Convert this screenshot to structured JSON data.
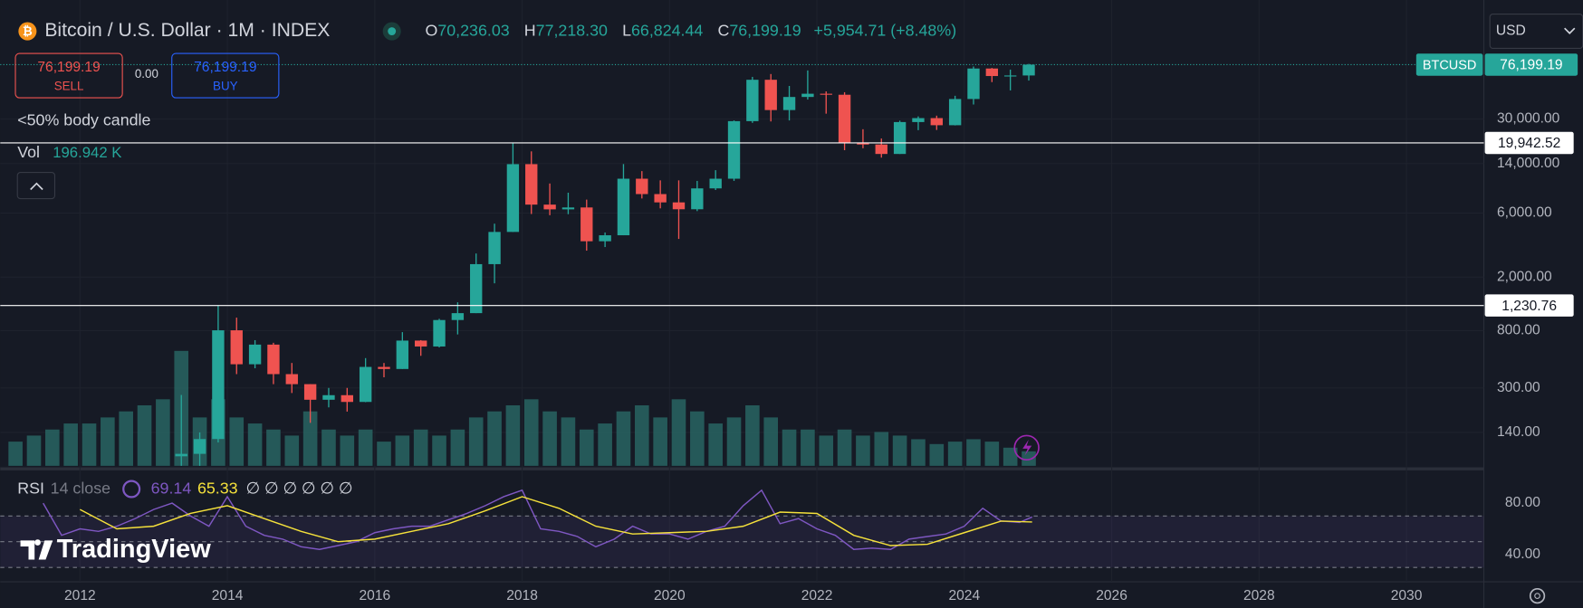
{
  "header": {
    "title": "Bitcoin / U.S. Dollar · 1M · INDEX",
    "open_label": "O",
    "open": "70,236.03",
    "high_label": "H",
    "high": "77,218.30",
    "low_label": "L",
    "low": "66,824.44",
    "close_label": "C",
    "close": "76,199.19",
    "change": "+5,954.71 (+8.48%)",
    "sell_price": "76,199.19",
    "sell": "SELL",
    "spread": "0.00",
    "buy_price": "76,199.19",
    "buy": "BUY",
    "indicator": "<50% body candle",
    "vol_label": "Vol",
    "vol_value": "196.942 K",
    "currency": "USD",
    "symbol": "BTCUSD",
    "last_price": "76,199.19",
    "logo": "TradingView"
  },
  "chart_data": [
    {
      "type": "candlestick",
      "log_scale": true,
      "grid": true,
      "up_color": "#26a69a",
      "down_color": "#ef5350",
      "xlim": [
        2010.918,
        2031.05
      ],
      "xticks": [
        2012,
        2014,
        2016,
        2018,
        2020,
        2022,
        2024,
        2026,
        2028,
        2030
      ],
      "ylim": [
        79,
        194000
      ],
      "yticks": [
        {
          "value": 30000,
          "label": "30,000.00"
        },
        {
          "value": 14000,
          "label": "14,000.00"
        },
        {
          "value": 6000,
          "label": "6,000.00"
        },
        {
          "value": 2000,
          "label": "2,000.00"
        },
        {
          "value": 800,
          "label": "800.00"
        },
        {
          "value": 300,
          "label": "300.00"
        },
        {
          "value": 140,
          "label": "140.00"
        }
      ],
      "levels": [
        {
          "value": 19942.52,
          "label": "19,942.52"
        },
        {
          "value": 1230.76,
          "label": "1,230.76"
        }
      ],
      "last": 76199.19,
      "x": [
        2013.375,
        2013.625,
        2013.875,
        2014.125,
        2014.375,
        2014.625,
        2014.875,
        2015.125,
        2015.375,
        2015.625,
        2015.875,
        2016.125,
        2016.375,
        2016.625,
        2016.875,
        2017.125,
        2017.375,
        2017.625,
        2017.875,
        2018.125,
        2018.375,
        2018.625,
        2018.875,
        2019.125,
        2019.375,
        2019.625,
        2019.875,
        2020.125,
        2020.375,
        2020.625,
        2020.875,
        2021.125,
        2021.375,
        2021.625,
        2021.875,
        2022.125,
        2022.375,
        2022.625,
        2022.875,
        2023.125,
        2023.375,
        2023.625,
        2023.875,
        2024.125,
        2024.375,
        2024.625,
        2024.875
      ],
      "open": [
        93,
        97,
        125,
        805,
        450,
        630,
        380,
        320,
        245,
        265,
        236,
        430,
        415,
        675,
        610,
        960,
        1080,
        2500,
        4340,
        13860,
        6930,
        6390,
        6600,
        3700,
        4100,
        10800,
        8300,
        7200,
        6400,
        9150,
        10800,
        28950,
        58800,
        35000,
        43800,
        46300,
        45500,
        19900,
        19400,
        16500,
        28500,
        30500,
        27000,
        42300,
        71300,
        62700,
        63300
      ],
      "high": [
        266,
        140,
        1230,
        1000,
        680,
        650,
        460,
        320,
        300,
        300,
        500,
        460,
        780,
        680,
        980,
        1300,
        3000,
        5000,
        19800,
        17250,
        9950,
        8500,
        7550,
        4300,
        13880,
        12300,
        10500,
        10500,
        10400,
        12500,
        29300,
        61800,
        64900,
        52900,
        69000,
        48200,
        47500,
        25200,
        21500,
        29200,
        31400,
        31800,
        44700,
        73800,
        72000,
        70000,
        77218.3
      ],
      "low": [
        65,
        65,
        118,
        380,
        420,
        320,
        275,
        165,
        215,
        200,
        235,
        360,
        415,
        520,
        600,
        750,
        1080,
        1800,
        4340,
        5900,
        5780,
        5880,
        3150,
        3350,
        4100,
        7700,
        6500,
        3850,
        6200,
        8900,
        10400,
        28100,
        28800,
        29300,
        41900,
        32900,
        17600,
        18200,
        15500,
        16500,
        24800,
        24900,
        26900,
        38500,
        56500,
        49000,
        58000
      ],
      "close": [
        97,
        125,
        805,
        450,
        630,
        380,
        320,
        245,
        265,
        236,
        430,
        415,
        675,
        610,
        960,
        1080,
        2500,
        4340,
        13860,
        6930,
        6390,
        6600,
        3700,
        4100,
        10800,
        8300,
        7200,
        6400,
        9150,
        10800,
        28950,
        58800,
        35000,
        43800,
        46300,
        45500,
        19900,
        19400,
        16500,
        28500,
        30500,
        27000,
        42300,
        71300,
        62700,
        63300,
        76199.19
      ],
      "volume": {
        "ylim": [
          0,
          100
        ],
        "color": "#2b6f6b",
        "x": [
          2011.125,
          2011.375,
          2011.625,
          2011.875,
          2012.125,
          2012.375,
          2012.625,
          2012.875,
          2013.125,
          2013.375,
          2013.625,
          2013.875,
          2014.125,
          2014.375,
          2014.625,
          2014.875,
          2015.125,
          2015.375,
          2015.625,
          2015.875,
          2016.125,
          2016.375,
          2016.625,
          2016.875,
          2017.125,
          2017.375,
          2017.625,
          2017.875,
          2018.125,
          2018.375,
          2018.625,
          2018.875,
          2019.125,
          2019.375,
          2019.625,
          2019.875,
          2020.125,
          2020.375,
          2020.625,
          2020.875,
          2021.125,
          2021.375,
          2021.625,
          2021.875,
          2022.125,
          2022.375,
          2022.625,
          2022.875,
          2023.125,
          2023.375,
          2023.625,
          2023.875,
          2024.125,
          2024.375,
          2024.625,
          2024.875
        ],
        "values": [
          20,
          25,
          30,
          35,
          35,
          40,
          45,
          50,
          55,
          95,
          40,
          55,
          40,
          35,
          30,
          25,
          45,
          30,
          25,
          30,
          20,
          25,
          30,
          25,
          30,
          40,
          45,
          50,
          55,
          45,
          40,
          30,
          35,
          45,
          50,
          40,
          55,
          45,
          35,
          40,
          50,
          40,
          30,
          30,
          25,
          30,
          25,
          28,
          25,
          22,
          18,
          20,
          22,
          20,
          15,
          12
        ]
      }
    },
    {
      "type": "line",
      "name": "RSI",
      "subtitle": "14 close",
      "value_label": "69.14",
      "ma_label": "65.33",
      "extra": "∅ ∅ ∅ ∅ ∅ ∅",
      "xlim": [
        2010.918,
        2031.05
      ],
      "ylim": [
        20.4,
        102.7
      ],
      "yticks": [
        {
          "value": 80,
          "label": "80.00"
        },
        {
          "value": 40,
          "label": "40.00"
        }
      ],
      "bands": [
        70,
        50,
        30
      ],
      "series": [
        {
          "color": "#7e57c2",
          "x": [
            2011.5,
            2011.75,
            2012.0,
            2012.25,
            2012.5,
            2012.75,
            2013.0,
            2013.25,
            2013.5,
            2013.75,
            2014.0,
            2014.25,
            2014.5,
            2014.75,
            2015.0,
            2015.25,
            2015.5,
            2015.75,
            2016.0,
            2016.25,
            2016.5,
            2016.75,
            2017.0,
            2017.25,
            2017.5,
            2017.75,
            2018.0,
            2018.25,
            2018.5,
            2018.75,
            2019.0,
            2019.25,
            2019.5,
            2019.75,
            2020.0,
            2020.25,
            2020.5,
            2020.75,
            2021.0,
            2021.25,
            2021.5,
            2021.75,
            2022.0,
            2022.25,
            2022.5,
            2022.75,
            2023.0,
            2023.25,
            2023.5,
            2023.75,
            2024.0,
            2024.25,
            2024.5,
            2024.75,
            2024.92
          ],
          "values": [
            80,
            55,
            60,
            58,
            62,
            68,
            75,
            80,
            70,
            62,
            85,
            62,
            55,
            52,
            46,
            44,
            47,
            50,
            57,
            60,
            62,
            62,
            67,
            72,
            78,
            85,
            90,
            60,
            58,
            54,
            46,
            52,
            62,
            56,
            56,
            52,
            58,
            62,
            78,
            90,
            64,
            68,
            60,
            55,
            44,
            45,
            44,
            52,
            54,
            56,
            62,
            76,
            66,
            65,
            69.14
          ]
        },
        {
          "color": "#f5e13b",
          "x": [
            2012.0,
            2012.5,
            2013.0,
            2013.5,
            2014.0,
            2014.5,
            2015.0,
            2015.5,
            2016.0,
            2016.5,
            2017.0,
            2017.5,
            2018.0,
            2018.5,
            2019.0,
            2019.5,
            2020.0,
            2020.5,
            2021.0,
            2021.5,
            2022.0,
            2022.5,
            2023.0,
            2023.5,
            2024.0,
            2024.5,
            2024.92
          ],
          "values": [
            75,
            60,
            62,
            72,
            78,
            68,
            58,
            50,
            52,
            58,
            64,
            74,
            85,
            76,
            62,
            56,
            57,
            58,
            62,
            73,
            72,
            55,
            47,
            48,
            57,
            66,
            65.33
          ]
        }
      ]
    }
  ]
}
